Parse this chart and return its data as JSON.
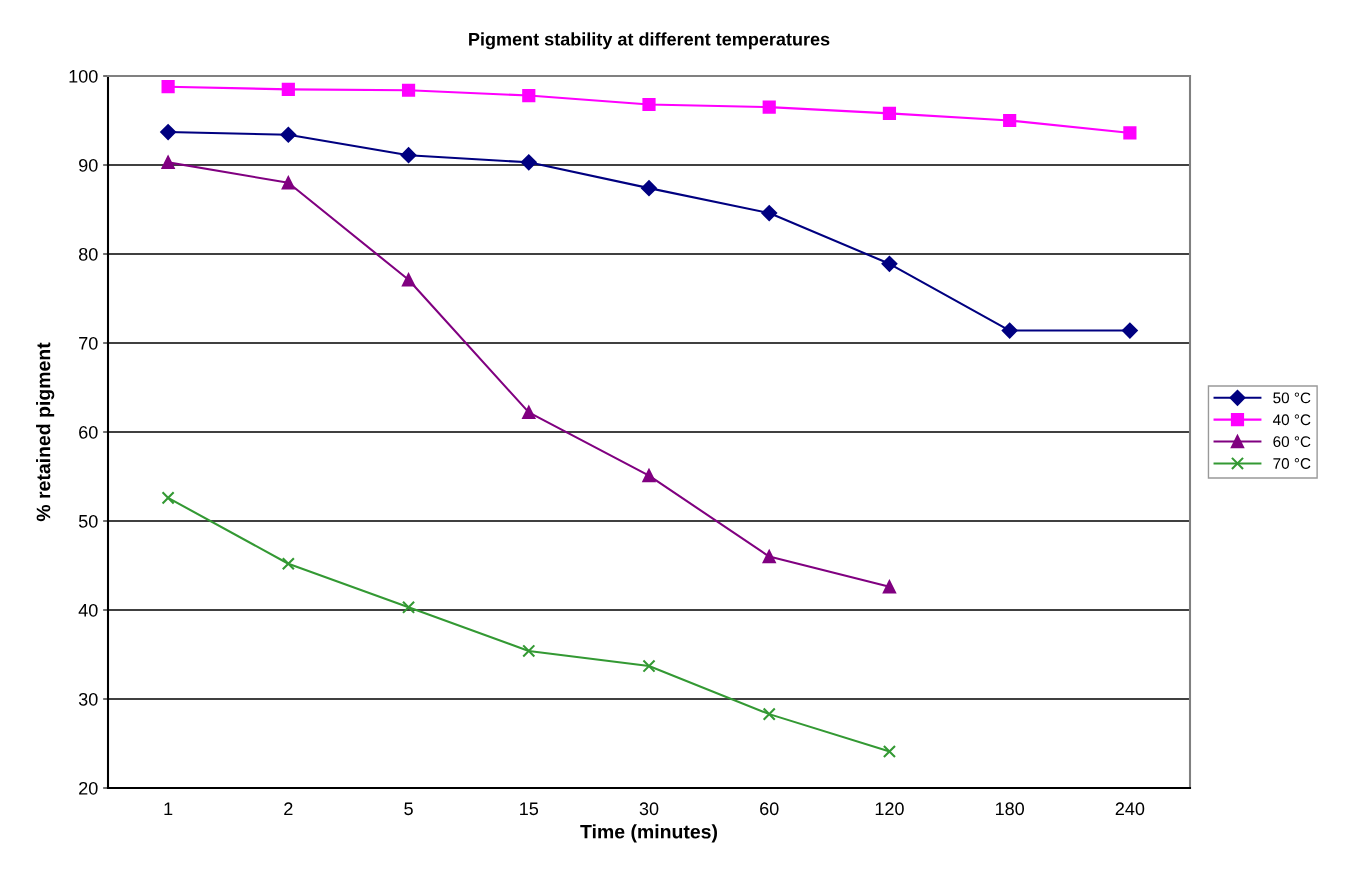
{
  "chart_data": {
    "type": "line",
    "title": "Pigment stability at different temperatures",
    "xlabel": "Time (minutes)",
    "ylabel": "% retained pigment",
    "categories": [
      "1",
      "2",
      "5",
      "15",
      "30",
      "60",
      "120",
      "180",
      "240"
    ],
    "series": [
      {
        "name": "50 °C",
        "color": "#000080",
        "marker": "diamond",
        "values": [
          93.7,
          93.4,
          91.1,
          90.3,
          87.4,
          84.6,
          78.9,
          71.4,
          71.4
        ]
      },
      {
        "name": "40 °C",
        "color": "#ff00ff",
        "marker": "square",
        "values": [
          98.8,
          98.5,
          98.4,
          97.8,
          96.8,
          96.5,
          95.8,
          95.0,
          93.6
        ]
      },
      {
        "name": "60 °C",
        "color": "#800080",
        "marker": "triangle",
        "values": [
          90.3,
          88.0,
          77.1,
          62.2,
          55.1,
          46.0,
          42.6,
          null,
          null
        ]
      },
      {
        "name": "70 °C",
        "color": "#339933",
        "marker": "cross",
        "values": [
          52.6,
          45.2,
          40.3,
          35.4,
          33.7,
          28.3,
          24.1,
          null,
          null
        ]
      }
    ],
    "ylim": [
      20,
      100
    ],
    "yticks": [
      20,
      30,
      40,
      50,
      60,
      70,
      80,
      90,
      100
    ],
    "grid": "y",
    "legend": "right"
  }
}
